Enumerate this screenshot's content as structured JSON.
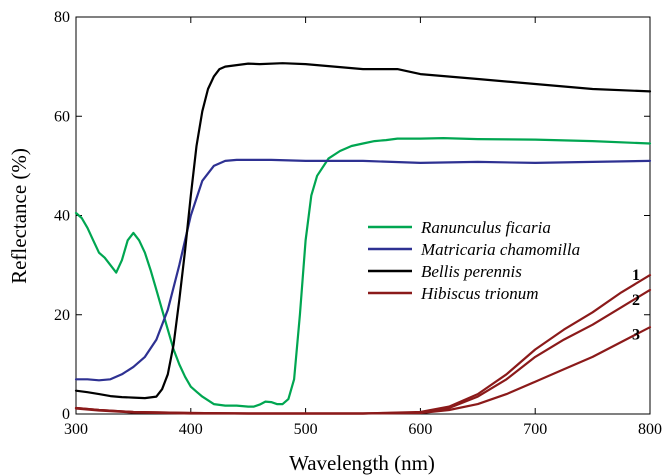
{
  "chart_data": {
    "type": "line",
    "xlabel": "Wavelength (nm)",
    "ylabel": "Reflectance (%)",
    "xlim": [
      300,
      800
    ],
    "ylim": [
      0,
      80
    ],
    "xticks": [
      300,
      400,
      500,
      600,
      700,
      800
    ],
    "yticks": [
      0,
      20,
      40,
      60,
      80
    ],
    "grid": false,
    "legend_position": "center-right",
    "series": [
      {
        "name": "Ranunculus ficaria",
        "color": "#00a651",
        "x": [
          300,
          305,
          310,
          315,
          320,
          325,
          330,
          335,
          340,
          345,
          350,
          355,
          360,
          365,
          370,
          375,
          380,
          385,
          390,
          395,
          400,
          405,
          410,
          420,
          430,
          440,
          450,
          455,
          460,
          465,
          470,
          475,
          480,
          485,
          490,
          495,
          500,
          505,
          510,
          520,
          530,
          540,
          550,
          560,
          570,
          580,
          600,
          620,
          650,
          700,
          750,
          800
        ],
        "y": [
          40.5,
          39.5,
          37.5,
          35,
          32.5,
          31.5,
          30,
          28.5,
          31,
          35,
          36.5,
          35,
          32.5,
          29,
          25,
          21,
          17,
          13,
          10,
          7.5,
          5.5,
          4.5,
          3.5,
          2,
          1.7,
          1.7,
          1.5,
          1.5,
          1.9,
          2.5,
          2.4,
          2,
          2,
          3,
          7,
          20,
          35,
          44,
          48,
          51.5,
          53,
          54,
          54.5,
          55,
          55.2,
          55.5,
          55.5,
          55.6,
          55.4,
          55.3,
          55,
          54.5
        ]
      },
      {
        "name": "Matricaria chamomilla",
        "color": "#2e3192",
        "x": [
          300,
          310,
          320,
          330,
          340,
          350,
          360,
          370,
          380,
          390,
          400,
          410,
          420,
          430,
          440,
          450,
          470,
          500,
          550,
          600,
          650,
          700,
          750,
          800
        ],
        "y": [
          7,
          7,
          6.8,
          7,
          8,
          9.5,
          11.5,
          15,
          21,
          30,
          40,
          47,
          50,
          51,
          51.2,
          51.2,
          51.2,
          51,
          51,
          50.6,
          50.8,
          50.6,
          50.8,
          51
        ]
      },
      {
        "name": "Bellis perennis",
        "color": "#000000",
        "x": [
          300,
          310,
          320,
          330,
          340,
          350,
          360,
          370,
          375,
          380,
          385,
          390,
          395,
          400,
          405,
          410,
          415,
          420,
          425,
          430,
          440,
          450,
          460,
          480,
          500,
          550,
          580,
          600,
          650,
          700,
          750,
          800
        ],
        "y": [
          4.7,
          4.4,
          4,
          3.6,
          3.4,
          3.3,
          3.2,
          3.5,
          5,
          8,
          14,
          23,
          33,
          44,
          54,
          61,
          65.5,
          68,
          69.5,
          70,
          70.3,
          70.6,
          70.5,
          70.7,
          70.5,
          69.5,
          69.5,
          68.5,
          67.5,
          66.5,
          65.5,
          65
        ]
      },
      {
        "name": "Hibiscus trionum",
        "color": "#8b1a1a",
        "x": [
          300,
          320,
          350,
          400,
          450,
          500,
          550,
          600,
          625,
          650,
          675,
          700,
          725,
          750,
          775,
          800
        ],
        "y": [
          1.2,
          0.8,
          0.4,
          0.2,
          0.1,
          0.1,
          0.1,
          0.4,
          1.5,
          4,
          8,
          13,
          17,
          20.5,
          24.5,
          28
        ]
      },
      {
        "name": "",
        "color": "#8b1a1a",
        "x": [
          300,
          320,
          350,
          400,
          450,
          500,
          550,
          600,
          625,
          650,
          675,
          700,
          725,
          750,
          775,
          800
        ],
        "y": [
          1.2,
          0.8,
          0.4,
          0.2,
          0.1,
          0.1,
          0.1,
          0.3,
          1.2,
          3.5,
          7,
          11.5,
          15,
          18,
          21.5,
          25
        ]
      },
      {
        "name": "",
        "color": "#8b1a1a",
        "x": [
          300,
          320,
          350,
          400,
          450,
          500,
          550,
          600,
          625,
          650,
          675,
          700,
          725,
          750,
          775,
          800
        ],
        "y": [
          1.1,
          0.7,
          0.3,
          0.1,
          0.1,
          0.1,
          0.1,
          0.2,
          0.8,
          2,
          4,
          6.5,
          9,
          11.5,
          14.5,
          17.5
        ]
      }
    ],
    "annotations": [
      {
        "text": "1",
        "x": 780,
        "y": 28
      },
      {
        "text": "2",
        "x": 780,
        "y": 23
      },
      {
        "text": "3",
        "x": 780,
        "y": 16
      }
    ]
  }
}
